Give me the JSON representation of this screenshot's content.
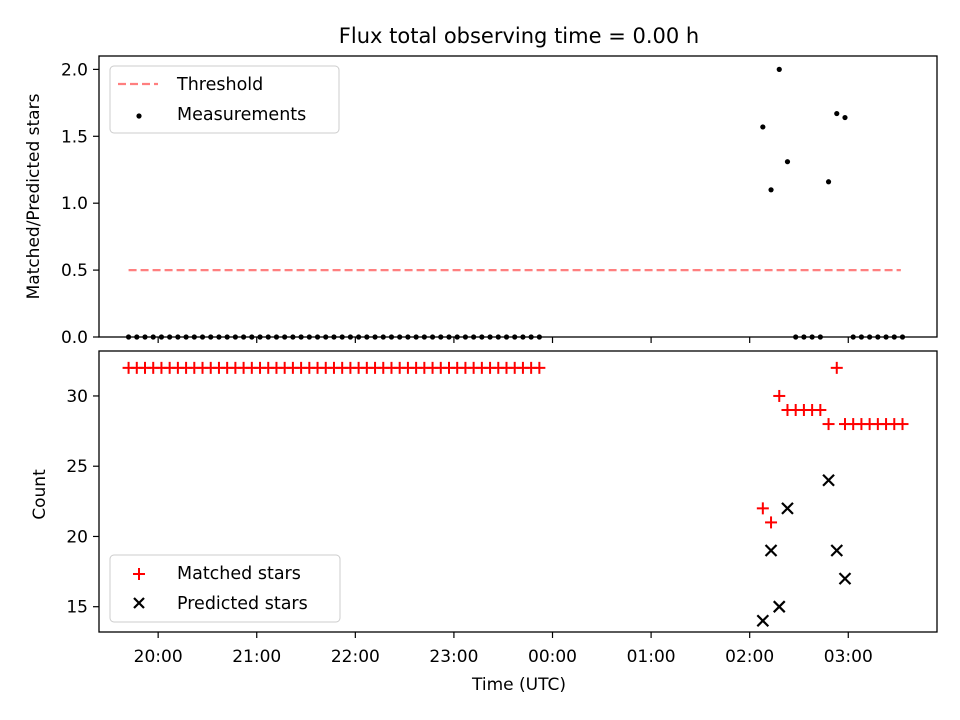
{
  "chart_data": [
    {
      "type": "scatter",
      "title": "Flux total observing time = 0.00 h",
      "ylabel": "Matched/Predicted stars",
      "ylim": [
        0,
        2.1
      ],
      "xlim_hours": [
        19.4,
        27.9
      ],
      "y_ticks": [
        "0.0",
        "0.5",
        "1.0",
        "1.5",
        "2.0"
      ],
      "y_tick_values": [
        0,
        0.5,
        1.0,
        1.5,
        2.0
      ],
      "legend": {
        "position": "upper-left",
        "entries": [
          "Threshold",
          "Measurements"
        ]
      },
      "threshold": {
        "name": "Threshold",
        "y": 0.5,
        "x_start": "19:42",
        "x_end": "03:32",
        "color": "#ff7f7f"
      },
      "series": [
        {
          "name": "Measurements",
          "color": "#000000",
          "x": [
            "19:42",
            "19:47",
            "19:52",
            "19:57",
            "20:02",
            "20:07",
            "20:12",
            "20:17",
            "20:22",
            "20:27",
            "20:32",
            "20:37",
            "20:42",
            "20:47",
            "20:52",
            "20:57",
            "21:02",
            "21:07",
            "21:12",
            "21:17",
            "21:22",
            "21:27",
            "21:32",
            "21:37",
            "21:42",
            "21:47",
            "21:52",
            "21:57",
            "22:02",
            "22:07",
            "22:12",
            "22:17",
            "22:22",
            "22:27",
            "22:32",
            "22:37",
            "22:42",
            "22:47",
            "22:52",
            "22:57",
            "23:02",
            "23:07",
            "23:12",
            "23:17",
            "23:22",
            "23:27",
            "23:32",
            "23:37",
            "23:42",
            "23:47",
            "23:52",
            "02:08",
            "02:13",
            "02:18",
            "02:23",
            "02:28",
            "02:33",
            "02:38",
            "02:43",
            "02:48",
            "02:53",
            "02:58",
            "03:03",
            "03:08",
            "03:13",
            "03:18",
            "03:23",
            "03:28",
            "03:33"
          ],
          "y": [
            0,
            0,
            0,
            0,
            0,
            0,
            0,
            0,
            0,
            0,
            0,
            0,
            0,
            0,
            0,
            0,
            0,
            0,
            0,
            0,
            0,
            0,
            0,
            0,
            0,
            0,
            0,
            0,
            0,
            0,
            0,
            0,
            0,
            0,
            0,
            0,
            0,
            0,
            0,
            0,
            0,
            0,
            0,
            0,
            0,
            0,
            0,
            0,
            0,
            0,
            0,
            1.57,
            1.1,
            2.0,
            1.31,
            0,
            0,
            0,
            0,
            1.16,
            1.67,
            1.64,
            0,
            0,
            0,
            0,
            0,
            0,
            0
          ]
        }
      ]
    },
    {
      "type": "scatter",
      "xlabel": "Time (UTC)",
      "ylabel": "Count",
      "ylim": [
        13.2,
        33.2
      ],
      "xlim_hours": [
        19.4,
        27.9
      ],
      "y_ticks": [
        "15",
        "20",
        "25",
        "30"
      ],
      "y_tick_values": [
        15,
        20,
        25,
        30
      ],
      "x_ticks": [
        "20:00",
        "21:00",
        "22:00",
        "23:00",
        "00:00",
        "01:00",
        "02:00",
        "03:00"
      ],
      "x_tick_hours": [
        20,
        21,
        22,
        23,
        24,
        25,
        26,
        27
      ],
      "legend": {
        "position": "lower-left",
        "entries": [
          "Matched stars",
          "Predicted stars"
        ]
      },
      "series": [
        {
          "name": "Matched stars",
          "color": "#ff0000",
          "marker": "plus",
          "x": [
            "19:42",
            "19:47",
            "19:52",
            "19:57",
            "20:02",
            "20:07",
            "20:12",
            "20:17",
            "20:22",
            "20:27",
            "20:32",
            "20:37",
            "20:42",
            "20:47",
            "20:52",
            "20:57",
            "21:02",
            "21:07",
            "21:12",
            "21:17",
            "21:22",
            "21:27",
            "21:32",
            "21:37",
            "21:42",
            "21:47",
            "21:52",
            "21:57",
            "22:02",
            "22:07",
            "22:12",
            "22:17",
            "22:22",
            "22:27",
            "22:32",
            "22:37",
            "22:42",
            "22:47",
            "22:52",
            "22:57",
            "23:02",
            "23:07",
            "23:12",
            "23:17",
            "23:22",
            "23:27",
            "23:32",
            "23:37",
            "23:42",
            "23:47",
            "23:52",
            "02:08",
            "02:13",
            "02:18",
            "02:23",
            "02:28",
            "02:33",
            "02:38",
            "02:43",
            "02:48",
            "02:53",
            "02:58",
            "03:03",
            "03:08",
            "03:13",
            "03:18",
            "03:23",
            "03:28",
            "03:33"
          ],
          "y": [
            32,
            32,
            32,
            32,
            32,
            32,
            32,
            32,
            32,
            32,
            32,
            32,
            32,
            32,
            32,
            32,
            32,
            32,
            32,
            32,
            32,
            32,
            32,
            32,
            32,
            32,
            32,
            32,
            32,
            32,
            32,
            32,
            32,
            32,
            32,
            32,
            32,
            32,
            32,
            32,
            32,
            32,
            32,
            32,
            32,
            32,
            32,
            32,
            32,
            32,
            32,
            22,
            21,
            30,
            29,
            29,
            29,
            29,
            29,
            28,
            32,
            28,
            28,
            28,
            28,
            28,
            28,
            28,
            28
          ]
        },
        {
          "name": "Predicted stars",
          "color": "#000000",
          "marker": "x",
          "x": [
            "02:08",
            "02:13",
            "02:18",
            "02:23",
            "02:48",
            "02:53",
            "02:58"
          ],
          "y": [
            14,
            19,
            15,
            22,
            24,
            19,
            17
          ]
        }
      ]
    }
  ]
}
